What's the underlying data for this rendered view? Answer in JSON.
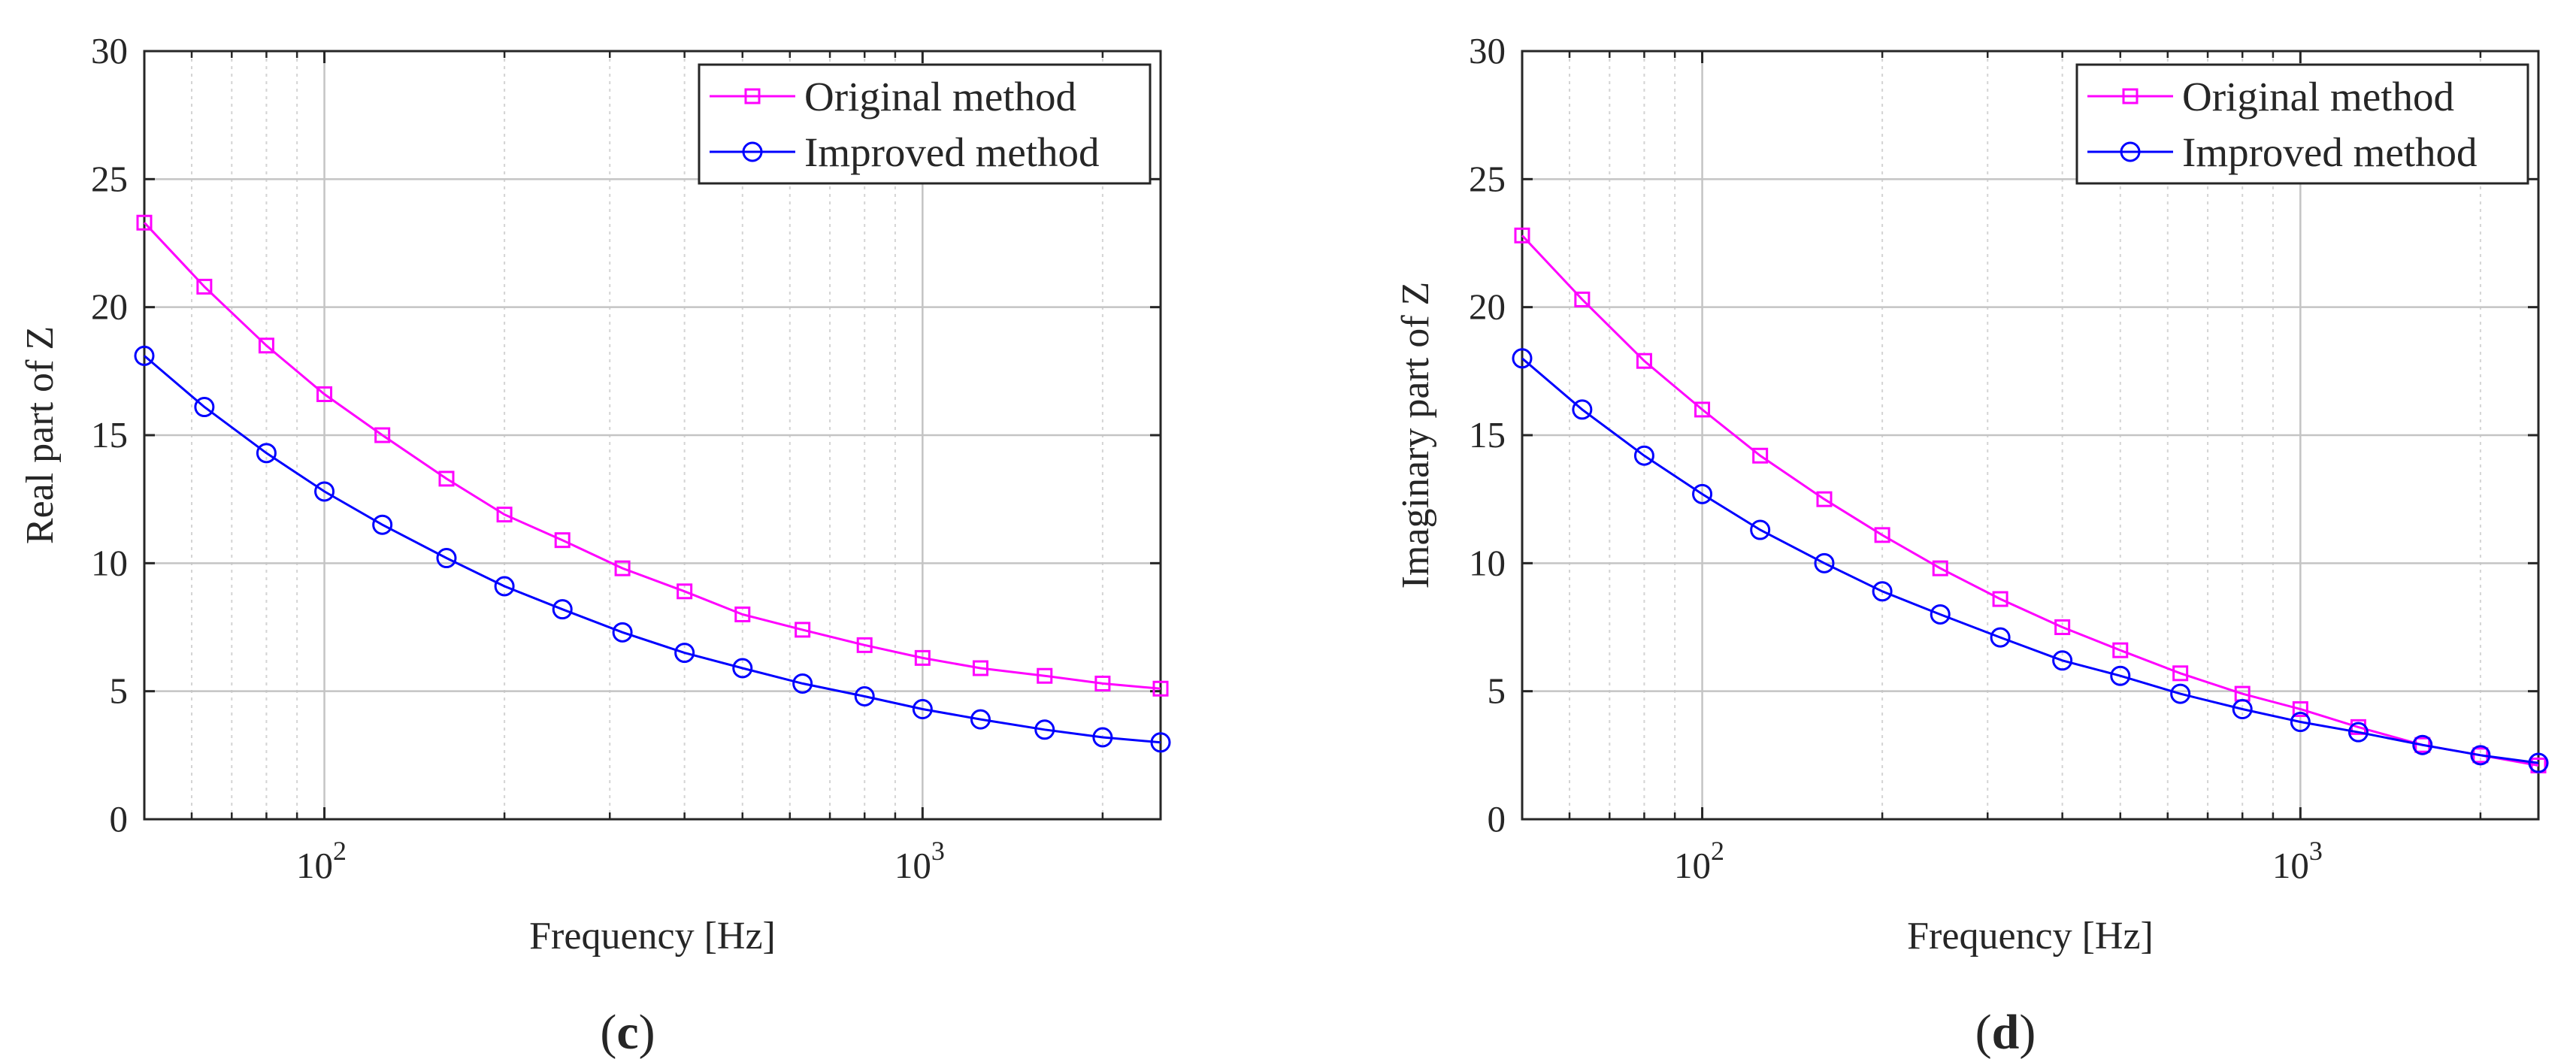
{
  "chart_data": [
    {
      "type": "line",
      "panel_label": "(c)",
      "xlabel": "Frequency [Hz]",
      "ylabel": "Real part of Z",
      "xscale": "log",
      "xlim": [
        50,
        2500
      ],
      "ylim": [
        0,
        30
      ],
      "yticks": [
        0,
        5,
        10,
        15,
        20,
        25,
        30
      ],
      "xtick_labels": [
        {
          "base": "10",
          "exp": "2",
          "value": 100
        },
        {
          "base": "10",
          "exp": "3",
          "value": 1000
        }
      ],
      "grid": true,
      "legend_position": "top-right",
      "x": [
        50,
        63,
        80,
        100,
        125,
        160,
        200,
        250,
        315,
        400,
        500,
        630,
        800,
        1000,
        1250,
        1600,
        2000,
        2500
      ],
      "series": [
        {
          "name": "Original method",
          "color": "#ff00ff",
          "marker": "square",
          "values": [
            23.3,
            20.8,
            18.5,
            16.6,
            15.0,
            13.3,
            11.9,
            10.9,
            9.8,
            8.9,
            8.0,
            7.4,
            6.8,
            6.3,
            5.9,
            5.6,
            5.3,
            5.1
          ]
        },
        {
          "name": "Improved method",
          "color": "#0000ff",
          "marker": "circle",
          "values": [
            18.1,
            16.1,
            14.3,
            12.8,
            11.5,
            10.2,
            9.1,
            8.2,
            7.3,
            6.5,
            5.9,
            5.3,
            4.8,
            4.3,
            3.9,
            3.5,
            3.2,
            3.0
          ]
        }
      ]
    },
    {
      "type": "line",
      "panel_label": "(d)",
      "xlabel": "Frequency [Hz]",
      "ylabel": "Imaginary part of Z",
      "xscale": "log",
      "xlim": [
        50,
        2500
      ],
      "ylim": [
        0,
        30
      ],
      "yticks": [
        0,
        5,
        10,
        15,
        20,
        25,
        30
      ],
      "xtick_labels": [
        {
          "base": "10",
          "exp": "2",
          "value": 100
        },
        {
          "base": "10",
          "exp": "3",
          "value": 1000
        }
      ],
      "grid": true,
      "legend_position": "top-right",
      "x": [
        50,
        63,
        80,
        100,
        125,
        160,
        200,
        250,
        315,
        400,
        500,
        630,
        800,
        1000,
        1250,
        1600,
        2000,
        2500
      ],
      "series": [
        {
          "name": "Original method",
          "color": "#ff00ff",
          "marker": "square",
          "values": [
            22.8,
            20.3,
            17.9,
            16.0,
            14.2,
            12.5,
            11.1,
            9.8,
            8.6,
            7.5,
            6.6,
            5.7,
            4.9,
            4.3,
            3.6,
            2.9,
            2.5,
            2.1
          ]
        },
        {
          "name": "Improved method",
          "color": "#0000ff",
          "marker": "circle",
          "values": [
            18.0,
            16.0,
            14.2,
            12.7,
            11.3,
            10.0,
            8.9,
            8.0,
            7.1,
            6.2,
            5.6,
            4.9,
            4.3,
            3.8,
            3.4,
            2.9,
            2.5,
            2.2
          ]
        }
      ]
    }
  ]
}
